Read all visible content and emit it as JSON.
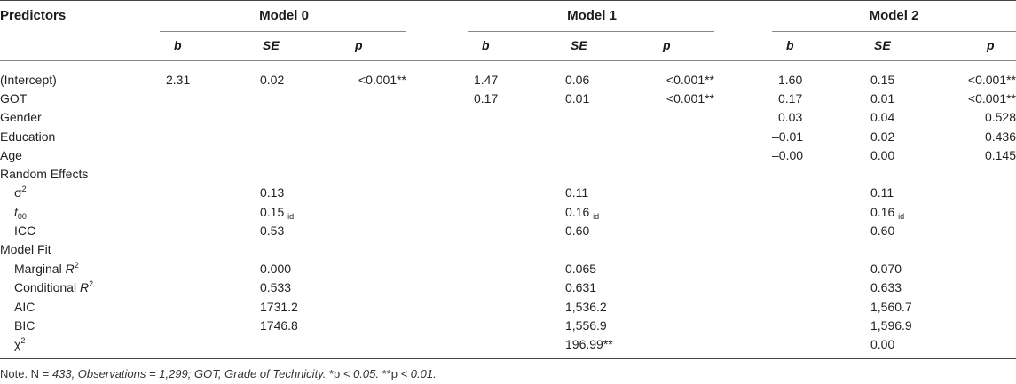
{
  "headers": {
    "predictors": "Predictors",
    "model0": "Model 0",
    "model1": "Model 1",
    "model2": "Model 2",
    "b": "b",
    "se": "SE",
    "p": "p"
  },
  "rows": {
    "intercept": {
      "label": "(Intercept)",
      "m0": [
        "2.31",
        "0.02",
        "<0.001**"
      ],
      "m1": [
        "1.47",
        "0.06",
        "<0.001**"
      ],
      "m2": [
        "1.60",
        "0.15",
        "<0.001**"
      ]
    },
    "got": {
      "label": "GOT",
      "m1": [
        "0.17",
        "0.01",
        "<0.001**"
      ],
      "m2": [
        "0.17",
        "0.01",
        "<0.001**"
      ]
    },
    "gender": {
      "label": "Gender",
      "m2": [
        "0.03",
        "0.04",
        "0.528"
      ]
    },
    "education": {
      "label": "Education",
      "m2": [
        "–0.01",
        "0.02",
        "0.436"
      ]
    },
    "age": {
      "label": "Age",
      "m2": [
        "–0.00",
        "0.00",
        "0.145"
      ]
    }
  },
  "random_effects": {
    "label": "Random Effects",
    "sigma": {
      "label": "σ",
      "sup": "2",
      "values": [
        "0.13",
        "0.11",
        "0.11"
      ]
    },
    "tau": {
      "label": "t",
      "sub": "00",
      "values": [
        "0.15",
        "0.16",
        "0.16"
      ],
      "suffix": "id"
    },
    "icc": {
      "label": "ICC",
      "values": [
        "0.53",
        "0.60",
        "0.60"
      ]
    }
  },
  "model_fit": {
    "label": "Model Fit",
    "marginal": {
      "label": "Marginal ",
      "r": "R",
      "sup": "2",
      "values": [
        "0.000",
        "0.065",
        "0.070"
      ]
    },
    "conditional": {
      "label": "Conditional ",
      "r": "R",
      "sup": "2",
      "values": [
        "0.533",
        "0.631",
        "0.633"
      ]
    },
    "aic": {
      "label": "AIC",
      "values": [
        "1731.2",
        "1,536.2",
        "1,560.7"
      ]
    },
    "bic": {
      "label": "BIC",
      "values": [
        "1746.8",
        "1,556.9",
        "1,596.9"
      ]
    },
    "chi": {
      "label": "χ",
      "sup": "2",
      "values": [
        "",
        "196.99**",
        "0.00"
      ]
    }
  },
  "note": {
    "prefix": "Note. N = ",
    "italic": "433, Observations = 1,299; GOT, Grade of Technicity.",
    "mid1": " *p ",
    "it2": "< 0.05.",
    "mid2": " **p ",
    "it3": "< 0.01."
  }
}
